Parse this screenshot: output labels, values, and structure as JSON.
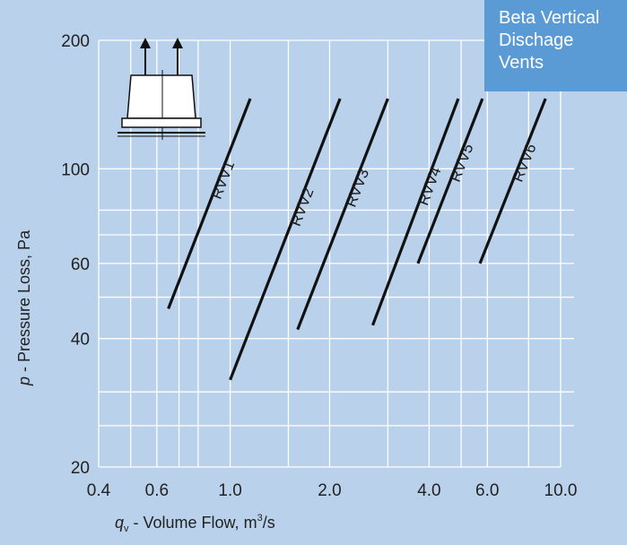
{
  "chart_data": {
    "type": "line",
    "xscale": "log",
    "yscale": "log",
    "xlim": [
      0.4,
      10.0
    ],
    "ylim": [
      20,
      200
    ],
    "x_ticks": [
      "0.4",
      "0.6",
      "1.0",
      "2.0",
      "4.0",
      "6.0",
      "10.0"
    ],
    "y_ticks": [
      "20",
      "40",
      "60",
      "100",
      "200"
    ],
    "grid": true,
    "background_color": "#b9d1ea",
    "line_color": "#111111",
    "legend_color": "#5b9bd5",
    "ylabel": {
      "italic": "p",
      "text": " - Pressure Loss, Pa"
    },
    "xlabel": {
      "italic": "q",
      "sub": "v",
      "text": " - Volume Flow, m",
      "sup": "3",
      "tail": "/s"
    },
    "legend": {
      "lines": [
        "Beta Vertical",
        "Dischage",
        "Vents"
      ],
      "placement": "top-right"
    },
    "icon": "vent-icon",
    "series": [
      {
        "name": "RVV1",
        "x": [
          0.65,
          1.15
        ],
        "y": [
          47,
          146
        ]
      },
      {
        "name": "RVV2",
        "x": [
          1.0,
          2.15
        ],
        "y": [
          32,
          146
        ]
      },
      {
        "name": "RVV3",
        "x": [
          1.6,
          3.0
        ],
        "y": [
          42,
          146
        ]
      },
      {
        "name": "RVV4",
        "x": [
          2.7,
          4.9
        ],
        "y": [
          43,
          146
        ]
      },
      {
        "name": "RVV5",
        "x": [
          3.7,
          5.8
        ],
        "y": [
          60,
          146
        ]
      },
      {
        "name": "RVV6",
        "x": [
          5.7,
          9.0
        ],
        "y": [
          60,
          146
        ]
      }
    ]
  }
}
